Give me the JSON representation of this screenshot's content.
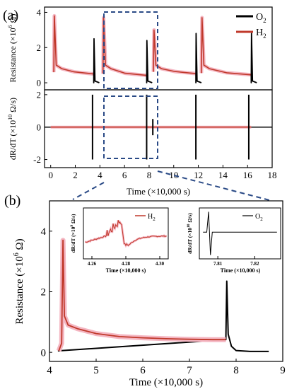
{
  "colors": {
    "o2": "#000000",
    "h2": "#c0392b",
    "h2_halo": "#f4b6c2",
    "guide": "#2a4a86"
  },
  "chart_data": [
    {
      "id": "a-top",
      "type": "line",
      "panel_label": "(a)",
      "ylabel_parts": [
        "Resistance (×10",
        "6",
        " Ω)"
      ],
      "xlim": [
        -0.5,
        18
      ],
      "ylim": [
        -0.4,
        4.3
      ],
      "yticks": [
        0,
        2,
        4
      ],
      "ytick_labels": [
        "0",
        "2",
        "4"
      ],
      "legend": [
        {
          "name": "O",
          "sub": "2",
          "color_key": "o2"
        },
        {
          "name": "H",
          "sub": "2",
          "color_key": "h2"
        }
      ],
      "cycles": [
        {
          "h2_on": 0.3,
          "o2_on": 3.5,
          "peak": 3.8,
          "floor": 0.5,
          "o2_spike": 2.5
        },
        {
          "h2_on": 4.3,
          "o2_on": 7.8,
          "peak": 3.7,
          "floor": 0.42,
          "o2_spike": 2.4
        },
        {
          "h2_on": 8.4,
          "o2_on": 11.8,
          "peak": 3.0,
          "floor": 0.52,
          "o2_spike": 2.8
        },
        {
          "h2_on": 12.3,
          "o2_on": 16.3,
          "peak": 3.7,
          "floor": 0.45,
          "o2_spike": 2.8
        }
      ]
    },
    {
      "id": "a-bottom",
      "type": "line",
      "ylabel_parts": [
        "dR/dT (×10",
        "10",
        " Ω/s)"
      ],
      "xlabel": "Time (×10,000 s)",
      "xlim": [
        -0.5,
        18
      ],
      "ylim": [
        -2.5,
        2.3
      ],
      "xticks": [
        0,
        2,
        4,
        6,
        8,
        10,
        12,
        14,
        16,
        18
      ],
      "xtick_labels": [
        "0",
        "2",
        "4",
        "6",
        "8",
        "10",
        "12",
        "14",
        "16",
        "18"
      ],
      "yticks": [
        -2,
        0,
        2
      ],
      "ytick_labels": [
        "-2",
        "0",
        "2"
      ],
      "spikes": [
        {
          "x": 3.4,
          "up": 2.0,
          "down": -2.0
        },
        {
          "x": 7.8,
          "up": 2.0,
          "down": -2.0
        },
        {
          "x": 11.8,
          "up": 2.0,
          "down": -2.0
        },
        {
          "x": 16.1,
          "up": 2.0,
          "down": -2.0
        },
        {
          "x": 8.3,
          "up": 0.5,
          "down": -0.5
        }
      ]
    },
    {
      "id": "b-main",
      "type": "line",
      "panel_label": "(b)",
      "ylabel_parts": [
        "Resistance (×10",
        "6",
        " Ω)"
      ],
      "xlabel": "Time (×10,000 s)",
      "xlim": [
        4,
        9
      ],
      "ylim": [
        -0.3,
        5
      ],
      "xticks": [
        4,
        5,
        6,
        7,
        8,
        9
      ],
      "xtick_labels": [
        "4",
        "5",
        "6",
        "7",
        "8",
        "9"
      ],
      "yticks": [
        0,
        2,
        4
      ],
      "ytick_labels": [
        "0",
        "2",
        "4"
      ],
      "h2_points": [
        [
          4.2,
          0.05
        ],
        [
          4.26,
          0.3
        ],
        [
          4.29,
          3.7
        ],
        [
          4.32,
          1.2
        ],
        [
          4.4,
          0.9
        ],
        [
          4.6,
          0.78
        ],
        [
          5.0,
          0.62
        ],
        [
          5.5,
          0.52
        ],
        [
          6.0,
          0.48
        ],
        [
          6.5,
          0.45
        ],
        [
          7.0,
          0.43
        ],
        [
          7.5,
          0.42
        ],
        [
          7.78,
          0.42
        ]
      ],
      "o2_points": [
        [
          4.18,
          0.05
        ],
        [
          4.2,
          0.05
        ],
        [
          7.78,
          0.42
        ],
        [
          7.8,
          2.35
        ],
        [
          7.83,
          0.6
        ],
        [
          7.9,
          0.2
        ],
        [
          8.0,
          0.06
        ],
        [
          8.3,
          0.03
        ],
        [
          8.7,
          0.03
        ]
      ]
    },
    {
      "id": "b-inset-h2",
      "type": "line",
      "ylabel_parts": [
        "dR/dT (×10",
        "9",
        " Ω/s)"
      ],
      "xlabel": "Time (×10,000 s)",
      "xlim": [
        4.255,
        4.305
      ],
      "ylim": [
        -1,
        1
      ],
      "xticks": [
        4.26,
        4.28,
        4.3
      ],
      "xtick_labels": [
        "4.26",
        "4.28",
        "4.30"
      ],
      "legend": [
        {
          "name": "H",
          "sub": "2",
          "color_key": "h2"
        }
      ]
    },
    {
      "id": "b-inset-o2",
      "type": "line",
      "ylabel_parts": [
        "dR/dT (×10",
        "10",
        " Ω/s)"
      ],
      "xlabel": "Time (×10,000 s)",
      "xlim": [
        7.805,
        7.827
      ],
      "ylim": [
        -1,
        1
      ],
      "xticks": [
        7.81,
        7.82
      ],
      "xtick_labels": [
        "7.81",
        "7.82"
      ],
      "legend": [
        {
          "name": "O",
          "sub": "2",
          "color_key": "o2"
        }
      ]
    }
  ]
}
